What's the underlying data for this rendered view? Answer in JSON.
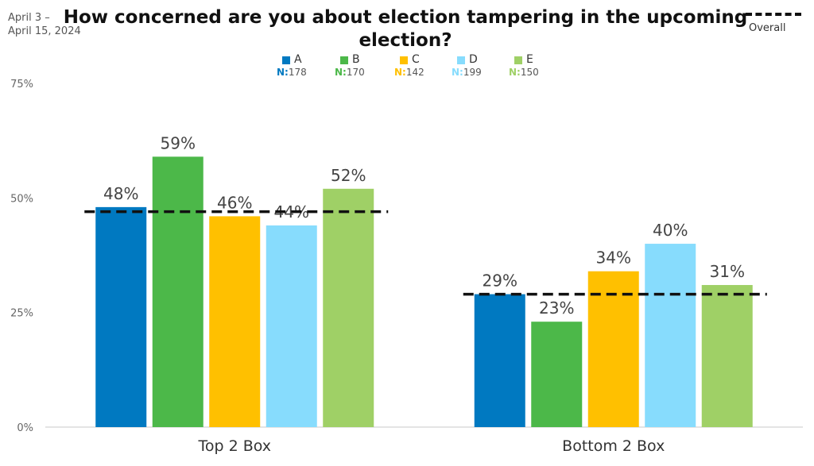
{
  "date_range": [
    "April 3 –",
    "April 15, 2024"
  ],
  "legend_overall": "Overall",
  "colors": {
    "A": "#0079c1",
    "B": "#4cb849",
    "C": "#ffc000",
    "D": "#87dcfd",
    "E": "#9fd066",
    "overall": "#111111"
  },
  "chart_data": {
    "type": "bar",
    "title": "How concerned are you about election tampering in the upcoming election?",
    "categories": [
      "Top 2 Box",
      "Bottom 2 Box"
    ],
    "series": [
      {
        "name": "A",
        "n": "178",
        "values": [
          48,
          29
        ],
        "labels": [
          "48%",
          "29%"
        ]
      },
      {
        "name": "B",
        "n": "170",
        "values": [
          59,
          23
        ],
        "labels": [
          "59%",
          "23%"
        ]
      },
      {
        "name": "C",
        "n": "142",
        "values": [
          46,
          34
        ],
        "labels": [
          "46%",
          "34%"
        ]
      },
      {
        "name": "D",
        "n": "199",
        "values": [
          44,
          40
        ],
        "labels": [
          "44%",
          "40%"
        ]
      },
      {
        "name": "E",
        "n": "150",
        "values": [
          52,
          31
        ],
        "labels": [
          "52%",
          "31%"
        ]
      }
    ],
    "overall": {
      "name": "Overall",
      "values": [
        47,
        29
      ]
    },
    "n_prefix": "N:",
    "ylim": [
      0,
      75
    ],
    "yticks": [
      0,
      25,
      50,
      75
    ],
    "ytick_labels": [
      "0%",
      "25%",
      "50%",
      "75%"
    ],
    "xlabel": "",
    "ylabel": "",
    "grid": false,
    "legend_position": "top"
  }
}
